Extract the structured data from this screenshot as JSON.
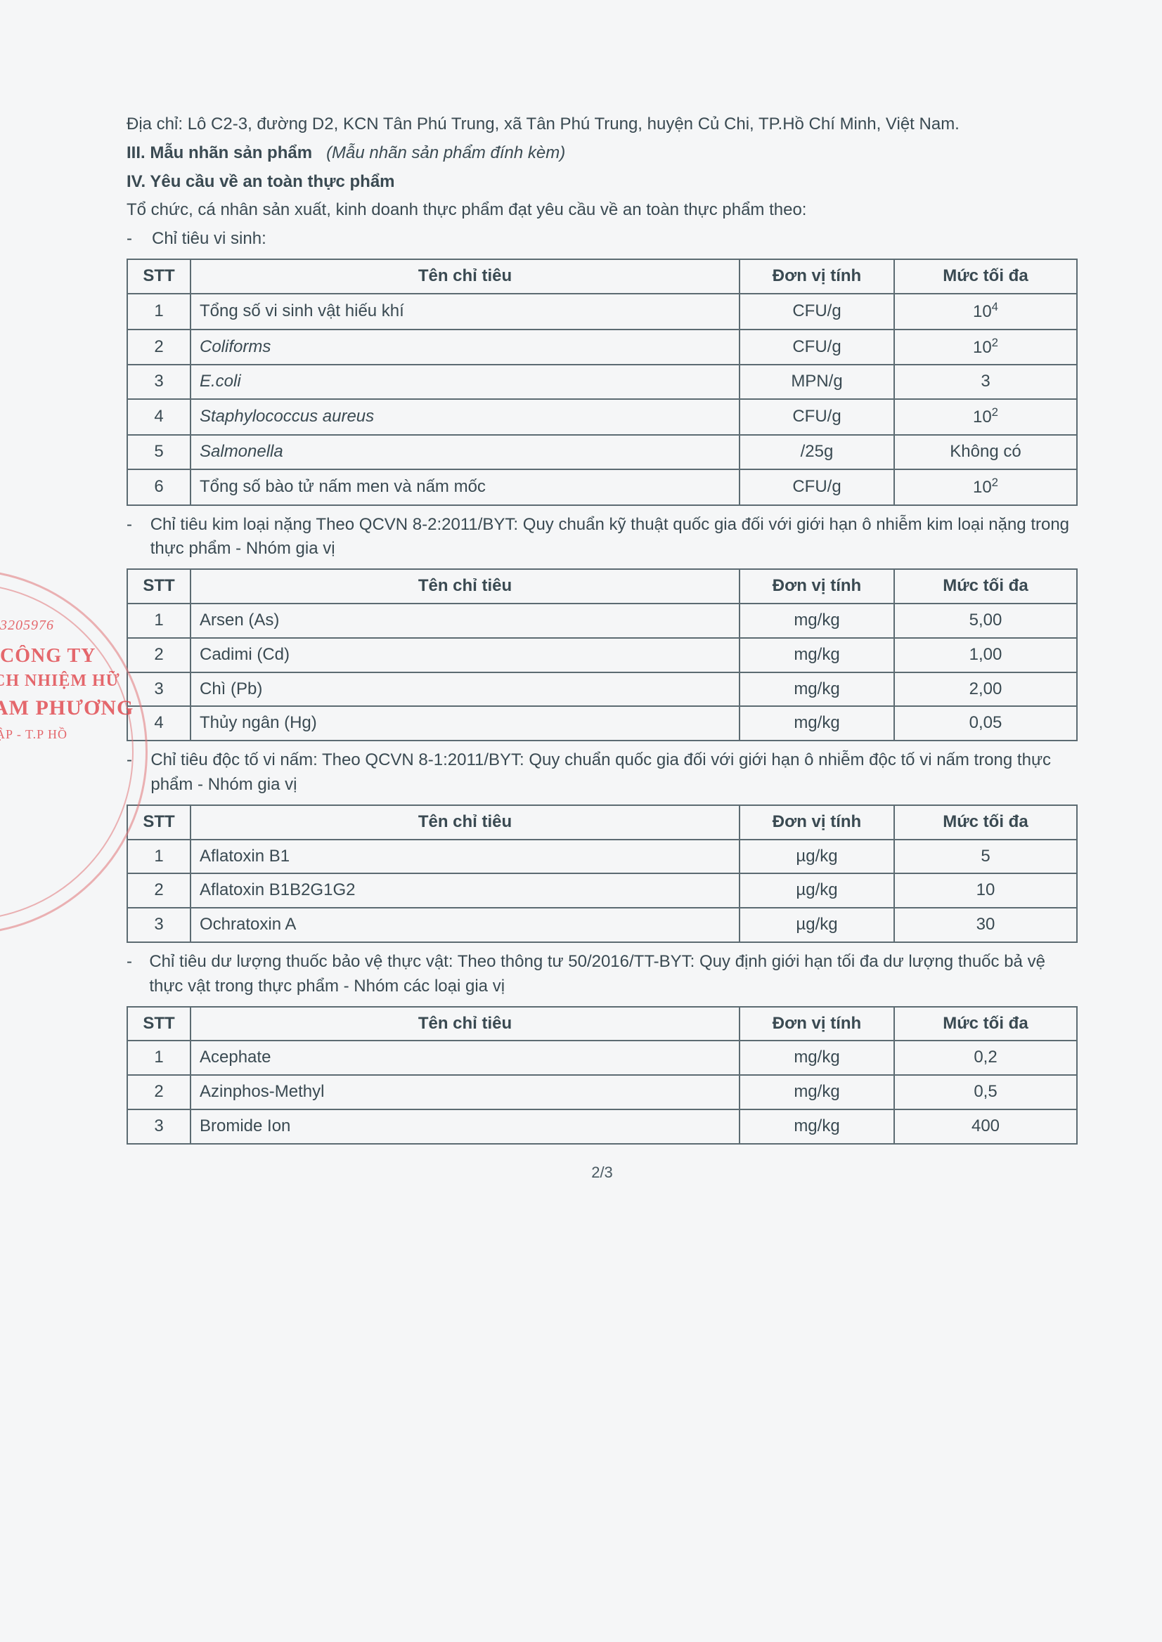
{
  "address_line": "Địa chỉ: Lô C2-3, đường D2, KCN Tân Phú Trung, xã Tân Phú Trung, huyện Củ Chi, TP.Hồ Chí Minh, Việt Nam.",
  "sec3_bold": "III. Mẫu nhãn sản phẩm",
  "sec3_italic": "(Mẫu nhãn sản phẩm đính kèm)",
  "sec4_bold": "IV. Yêu cầu về an toàn thực phẩm",
  "sec4_intro": "Tổ chức, cá nhân sản xuất, kinh doanh thực phẩm đạt yêu cầu về an toàn thực phẩm theo:",
  "headers": {
    "stt": "STT",
    "name": "Tên chỉ tiêu",
    "unit": "Đơn vị tính",
    "max": "Mức tối đa"
  },
  "sec_micro_title": "Chỉ tiêu vi sinh:",
  "table_micro": [
    {
      "stt": "1",
      "name": "Tổng số vi sinh vật hiếu khí",
      "unit": "CFU/g",
      "max_html": "10<sup>4</sup>",
      "name_italic": false
    },
    {
      "stt": "2",
      "name": "Coliforms",
      "unit": "CFU/g",
      "max_html": "10<sup>2</sup>",
      "name_italic": true
    },
    {
      "stt": "3",
      "name": "E.coli",
      "unit": "MPN/g",
      "max_html": "3",
      "name_italic": true
    },
    {
      "stt": "4",
      "name": "Staphylococcus aureus",
      "unit": "CFU/g",
      "max_html": "10<sup>2</sup>",
      "name_italic": true
    },
    {
      "stt": "5",
      "name": "Salmonella",
      "unit": "/25g",
      "max_html": "Không có",
      "name_italic": true
    },
    {
      "stt": "6",
      "name": "Tổng số bào tử nấm men và nấm mốc",
      "unit": "CFU/g",
      "max_html": "10<sup>2</sup>",
      "name_italic": false
    }
  ],
  "sec_metal_title": "Chỉ tiêu kim loại nặng Theo QCVN 8-2:2011/BYT: Quy chuẩn kỹ thuật quốc gia đối với giới hạn ô nhiễm kim loại nặng trong thực phẩm - Nhóm gia vị",
  "table_metal": [
    {
      "stt": "1",
      "name": "Arsen (As)",
      "unit": "mg/kg",
      "max_html": "5,00"
    },
    {
      "stt": "2",
      "name": "Cadimi (Cd)",
      "unit": "mg/kg",
      "max_html": "1,00"
    },
    {
      "stt": "3",
      "name": "Chì (Pb)",
      "unit": "mg/kg",
      "max_html": "2,00"
    },
    {
      "stt": "4",
      "name": "Thủy ngân (Hg)",
      "unit": "mg/kg",
      "max_html": "0,05"
    }
  ],
  "sec_myco_title": "Chỉ tiêu độc tố vi nấm: Theo QCVN 8-1:2011/BYT: Quy chuẩn quốc gia đối với giới hạn ô nhiễm độc tố vi nấm trong thực phẩm - Nhóm gia vị",
  "table_myco": [
    {
      "stt": "1",
      "name": "Aflatoxin B1",
      "unit": "µg/kg",
      "max_html": "5"
    },
    {
      "stt": "2",
      "name": "Aflatoxin B1B2G1G2",
      "unit": "µg/kg",
      "max_html": "10"
    },
    {
      "stt": "3",
      "name": "Ochratoxin A",
      "unit": "µg/kg",
      "max_html": "30"
    }
  ],
  "sec_pest_title": "Chỉ tiêu dư lượng thuốc bảo vệ thực vật: Theo thông tư 50/2016/TT-BYT: Quy định giới hạn tối đa dư lượng thuốc bả vệ thực vật trong thực phẩm - Nhóm các loại gia vị",
  "table_pest": [
    {
      "stt": "1",
      "name": "Acephate",
      "unit": "mg/kg",
      "max_html": "0,2"
    },
    {
      "stt": "2",
      "name": "Azinphos-Methyl",
      "unit": "mg/kg",
      "max_html": "0,5"
    },
    {
      "stt": "3",
      "name": "Bromide Ion",
      "unit": "mg/kg",
      "max_html": "400"
    }
  ],
  "page_number": "2/3",
  "stamp": {
    "num": "3205976",
    "l1": "CÔNG TY",
    "l2": "CH NHIỆM HỮ",
    "l3": "AM PHƯƠNG",
    "l4": "ẬP - T.P HỒ"
  }
}
